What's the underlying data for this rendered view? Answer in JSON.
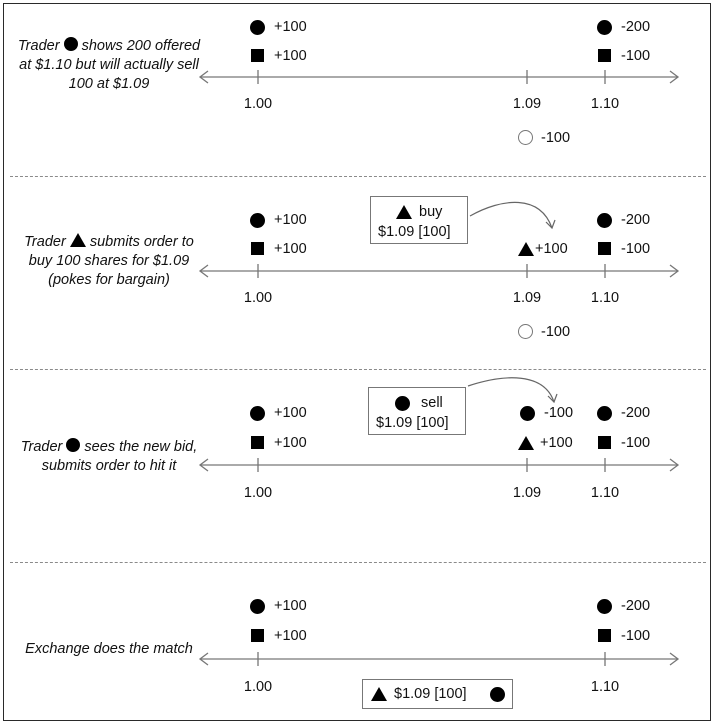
{
  "panels": [
    {
      "description": [
        "Trader",
        "shows 200 offered at $1.10 but will actually sell 100 at $1.09"
      ],
      "description_symbol": "circle",
      "ticks": [
        "1.00",
        "1.09",
        "1.10"
      ],
      "orders": {
        "p100_circle": "+100",
        "p100_square": "+100",
        "p110_circle": "-200",
        "p110_square": "-100",
        "hidden_circle": "-100"
      }
    },
    {
      "description": [
        "Trader",
        "submits order to buy 100 shares for $1.09 (pokes for bargain)"
      ],
      "description_symbol": "triangle",
      "ticks": [
        "1.00",
        "1.09",
        "1.10"
      ],
      "incoming_order": {
        "symbol": "triangle",
        "side": "buy",
        "detail": "$1.09 [100]"
      },
      "orders": {
        "p100_circle": "+100",
        "p100_square": "+100",
        "p109_triangle": "+100",
        "p110_circle": "-200",
        "p110_square": "-100",
        "hidden_circle": "-100"
      }
    },
    {
      "description": [
        "Trader",
        "sees the new bid, submits order to hit it"
      ],
      "description_symbol": "circle",
      "ticks": [
        "1.00",
        "1.09",
        "1.10"
      ],
      "incoming_order": {
        "symbol": "circle",
        "side": "sell",
        "detail": "$1.09 [100]"
      },
      "orders": {
        "p100_circle": "+100",
        "p100_square": "+100",
        "p109_circle": "-100",
        "p109_triangle": "+100",
        "p110_circle": "-200",
        "p110_square": "-100"
      }
    },
    {
      "description": [
        "Exchange does the match"
      ],
      "ticks": [
        "1.00",
        "1.10"
      ],
      "match": "$1.09 [100]",
      "orders": {
        "p100_circle": "+100",
        "p100_square": "+100",
        "p110_circle": "-200",
        "p110_square": "-100"
      }
    }
  ]
}
